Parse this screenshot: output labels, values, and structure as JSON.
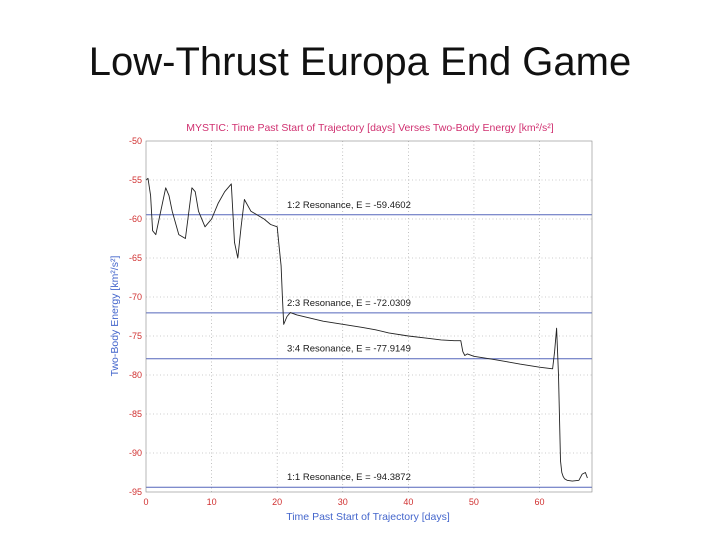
{
  "slide": {
    "title": "Low-Thrust Europa End Game"
  },
  "chart_data": {
    "type": "line",
    "title": "MYSTIC: Time Past Start of Trajectory [days] Verses Two-Body Energy [km²/s²]",
    "xlabel": "Time Past Start of Trajectory [days]",
    "ylabel": "Two-Body Energy [km²/s²]",
    "xlim": [
      0,
      68
    ],
    "ylim": [
      -95,
      -50
    ],
    "xticks": [
      "0",
      "10",
      "20",
      "30",
      "40",
      "50",
      "60"
    ],
    "yticks": [
      "-50",
      "-55",
      "-60",
      "-65",
      "-70",
      "-75",
      "-80",
      "-85",
      "-90",
      "-95"
    ],
    "grid": true,
    "series": [
      {
        "x": [
          0,
          0.3,
          0.7,
          1,
          1.5,
          2,
          3,
          3.5,
          4,
          5,
          6,
          7,
          7.5,
          8,
          9,
          10,
          11,
          12,
          13,
          13.5,
          14,
          14.5,
          15,
          16,
          17,
          18,
          19,
          20,
          20.3,
          20.6,
          20.8,
          21,
          21.5,
          22,
          23,
          25,
          27,
          30,
          33,
          35,
          37,
          40,
          43,
          45,
          47,
          48,
          48.3,
          48.6,
          49,
          50,
          53,
          55,
          57,
          60,
          62,
          62.3,
          62.6,
          62.9,
          63.2,
          63.4,
          63.6,
          63.8,
          64.2,
          65,
          66,
          66.5,
          67,
          67.3
        ],
        "y": [
          -55,
          -54.8,
          -57,
          -61.5,
          -62,
          -60,
          -56,
          -57,
          -59,
          -62,
          -62.5,
          -56,
          -56.5,
          -59,
          -61,
          -60,
          -58,
          -56.5,
          -55.5,
          -63,
          -65,
          -61,
          -57.5,
          -59,
          -59.5,
          -60,
          -60.7,
          -61,
          -63.5,
          -66,
          -70,
          -73.5,
          -72.5,
          -72,
          -72.3,
          -72.7,
          -73.1,
          -73.5,
          -73.9,
          -74.2,
          -74.6,
          -75,
          -75.3,
          -75.5,
          -75.6,
          -75.6,
          -77,
          -77.5,
          -77.3,
          -77.6,
          -78,
          -78.3,
          -78.6,
          -79,
          -79.2,
          -77,
          -74,
          -80,
          -91,
          -92.5,
          -93,
          -93.3,
          -93.5,
          -93.6,
          -93.5,
          -92.7,
          -92.5,
          -93.2
        ]
      }
    ],
    "reference_lines": [
      {
        "label": "1:2 Resonance, E = -59.4602",
        "y": -59.4602
      },
      {
        "label": "2:3 Resonance, E = -72.0309",
        "y": -72.0309
      },
      {
        "label": "3:4 Resonance, E = -77.9149",
        "y": -77.9149
      },
      {
        "label": "1:1 Resonance, E = -94.3872",
        "y": -94.3872
      }
    ],
    "colors": {
      "curve": "#222222",
      "reference": "#5566bb",
      "grid": "#9a9a9a",
      "ticks": "#d03030",
      "title": "#d03070",
      "axis_label": "#4466cc"
    }
  }
}
